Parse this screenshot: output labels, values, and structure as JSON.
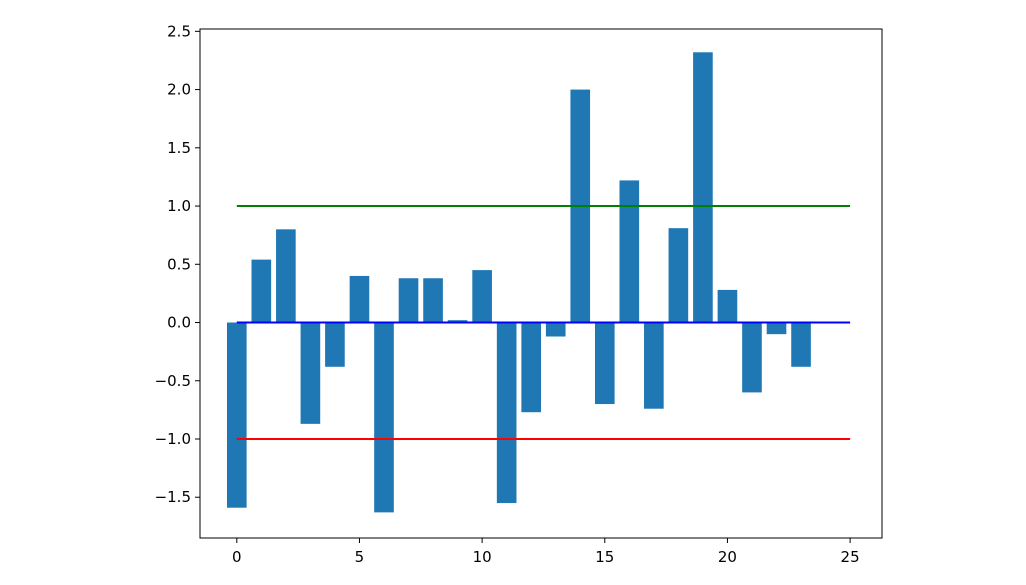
{
  "chart_data": {
    "type": "bar",
    "title": "",
    "xlabel": "",
    "ylabel": "",
    "xlim": [
      -1.5,
      26.3
    ],
    "ylim": [
      -1.85,
      2.52
    ],
    "grid": false,
    "legend": "none",
    "x": [
      0,
      1,
      2,
      3,
      4,
      5,
      6,
      7,
      8,
      9,
      10,
      11,
      12,
      13,
      14,
      15,
      16,
      17,
      18,
      19,
      20,
      21,
      22,
      23
    ],
    "values": [
      -1.59,
      0.54,
      0.8,
      -0.87,
      -0.38,
      0.4,
      -1.63,
      0.38,
      0.38,
      0.02,
      0.45,
      -1.55,
      -0.77,
      -0.12,
      2.0,
      -0.7,
      1.22,
      -0.74,
      0.81,
      2.32,
      0.28,
      -0.6,
      -0.1,
      -0.38
    ],
    "bar_width": 0.8,
    "bar_color": "#1f77b4",
    "hlines": [
      {
        "y": 1.0,
        "x_start": 0,
        "x_end": 25,
        "color": "#008000"
      },
      {
        "y": 0.0,
        "x_start": 0,
        "x_end": 25,
        "color": "#0000ff"
      },
      {
        "y": -1.0,
        "x_start": 0,
        "x_end": 25,
        "color": "#ff0000"
      }
    ],
    "xticks": [
      0,
      5,
      10,
      15,
      20,
      25
    ],
    "xtick_labels": [
      "0",
      "5",
      "10",
      "15",
      "20",
      "25"
    ],
    "yticks": [
      -1.5,
      -1.0,
      -0.5,
      0.0,
      0.5,
      1.0,
      1.5,
      2.0,
      2.5
    ],
    "ytick_labels": [
      "−1.5",
      "−1.0",
      "−0.5",
      "0.0",
      "0.5",
      "1.0",
      "1.5",
      "2.0",
      "2.5"
    ]
  }
}
